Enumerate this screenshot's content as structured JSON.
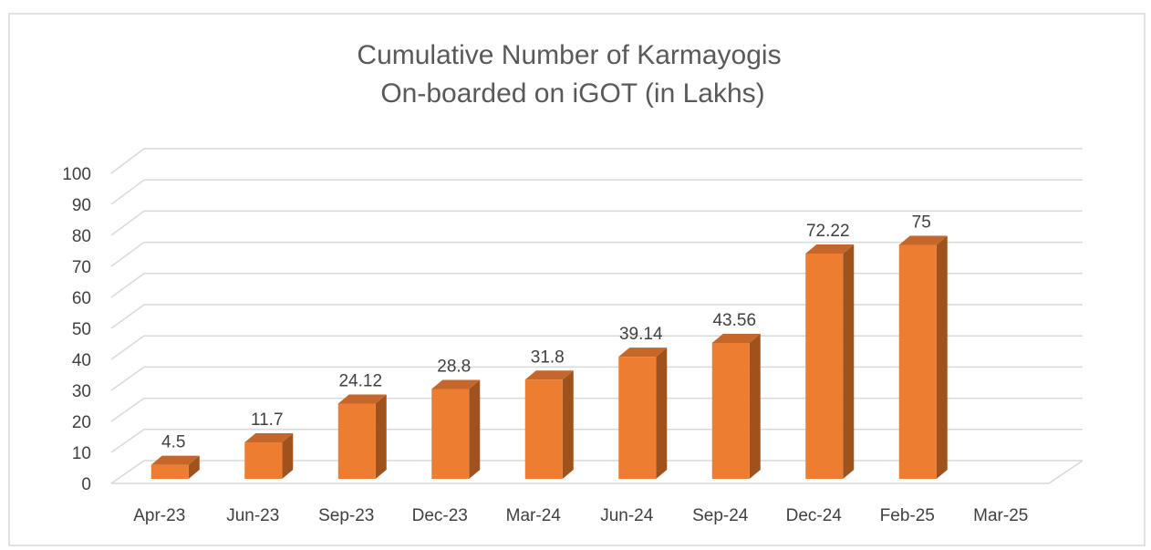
{
  "chart_data": {
    "type": "bar3d",
    "title": [
      "Cumulative Number of Karmayogis",
      "On-boarded on iGOT (in Lakhs)"
    ],
    "categories": [
      "Apr-23",
      "Jun-23",
      "Sep-23",
      "Dec-23",
      "Mar-24",
      "Jun-24",
      "Sep-24",
      "Dec-24",
      "Feb-25",
      "Mar-25"
    ],
    "values": [
      4.5,
      11.7,
      24.12,
      28.8,
      31.8,
      39.14,
      43.56,
      72.22,
      75,
      null
    ],
    "color": "#ed7d31",
    "ylim": [
      0,
      100
    ],
    "yticks": [
      0,
      10,
      20,
      30,
      40,
      50,
      60,
      70,
      80,
      90,
      100
    ],
    "grid": true
  }
}
